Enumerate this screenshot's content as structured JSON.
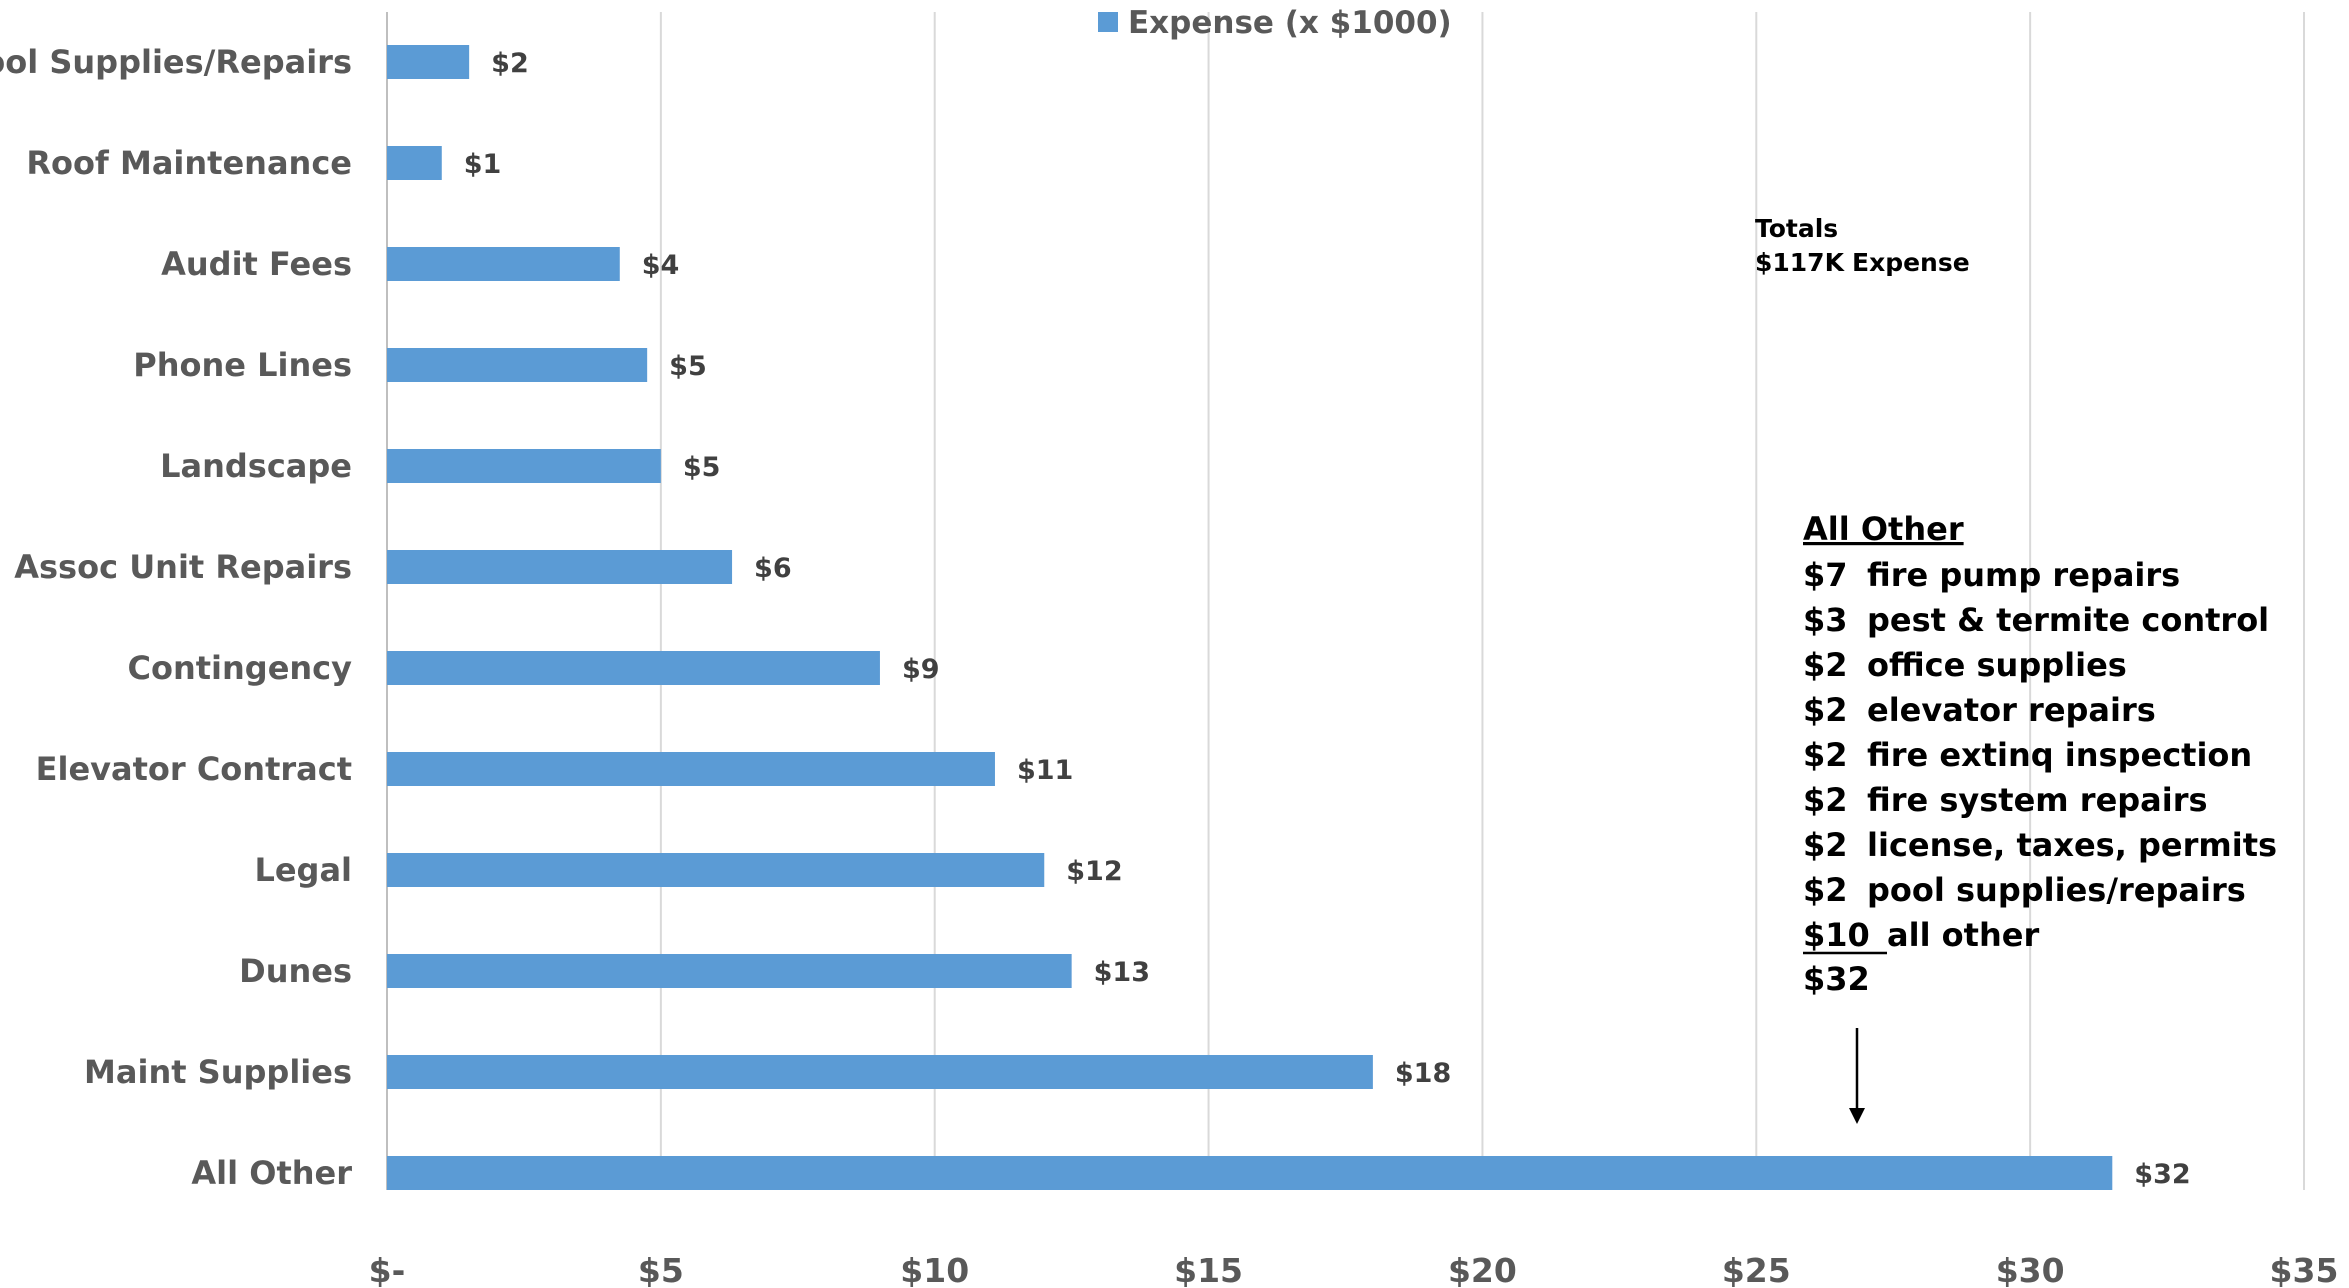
{
  "chart_data": {
    "type": "bar",
    "orientation": "horizontal",
    "categories": [
      "Pool Supplies/Repairs",
      "Roof Maintenance",
      "Audit Fees",
      "Phone Lines",
      "Landscape",
      "Assoc Unit Repairs",
      "Contingency",
      "Elevator Contract",
      "Legal",
      "Dunes",
      "Maint Supplies",
      "All Other"
    ],
    "series": [
      {
        "name": "Expense (x $1000)",
        "values": [
          1.5,
          1.0,
          4.25,
          4.75,
          5.0,
          6.3,
          9.0,
          11.1,
          12.0,
          12.5,
          18.0,
          31.5
        ],
        "data_labels": [
          "$2",
          "$1",
          "$4",
          "$5",
          "$5",
          "$6",
          "$9",
          "$11",
          "$12",
          "$13",
          "$18",
          "$32"
        ],
        "color": "#5b9bd5"
      }
    ],
    "xlim": [
      0,
      35
    ],
    "x_ticks": [
      0,
      5,
      10,
      15,
      20,
      25,
      30,
      35
    ],
    "x_tick_labels": [
      "$-",
      "$5",
      "$10",
      "$15",
      "$20",
      "$25",
      "$30",
      "$35"
    ],
    "grid": "vertical",
    "legend": "top-center",
    "title": "",
    "xlabel": "",
    "ylabel": ""
  },
  "annotations": {
    "totals": {
      "heading": "Totals",
      "value": "$117K",
      "label": "Expense"
    },
    "all_other_breakdown": {
      "heading": "All Other",
      "items": [
        {
          "amount": "$7",
          "desc": "fire pump repairs"
        },
        {
          "amount": "$3",
          "desc": "pest & termite control"
        },
        {
          "amount": "$2",
          "desc": "office supplies"
        },
        {
          "amount": "$2",
          "desc": "elevator repairs"
        },
        {
          "amount": "$2",
          "desc": "fire extinq inspection"
        },
        {
          "amount": "$2",
          "desc": "fire system repairs"
        },
        {
          "amount": "$2",
          "desc": "license, taxes, permits"
        },
        {
          "amount": "$2",
          "desc": "pool supplies/repairs"
        },
        {
          "amount": "$10",
          "desc": "all other"
        }
      ],
      "total": "$32"
    }
  }
}
